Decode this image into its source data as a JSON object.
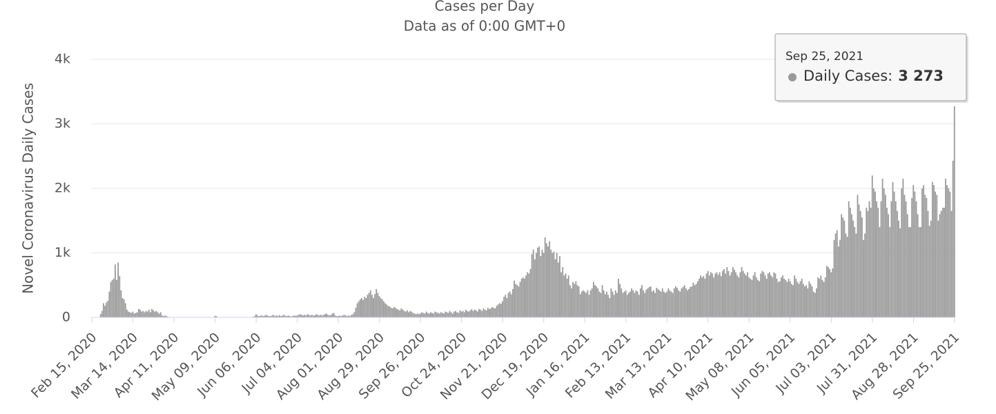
{
  "chart_data": {
    "type": "bar",
    "title": "Cases per Day",
    "subtitle": "Data as of 0:00 GMT+0",
    "y_label": "Novel Coronavirus Daily Cases",
    "categories": [
      "Feb 15, 2020",
      null,
      null,
      null,
      null,
      null,
      null,
      null,
      null,
      null,
      null,
      null,
      null,
      null,
      null,
      null,
      null,
      null,
      null,
      null,
      null,
      null,
      null,
      null,
      null,
      null,
      null,
      null,
      "Mar 14, 2020",
      null,
      null,
      null,
      null,
      null,
      null,
      null,
      null,
      null,
      null,
      null,
      null,
      null,
      null,
      null,
      null,
      null,
      null,
      null,
      null,
      null,
      null,
      null,
      null,
      null,
      null,
      null,
      "Apr 11, 2020",
      null,
      null,
      null,
      null,
      null,
      null,
      null,
      null,
      null,
      null,
      null,
      null,
      null,
      null,
      null,
      null,
      null,
      null,
      null,
      null,
      null,
      null,
      null,
      null,
      null,
      null,
      null,
      "May 09, 2020",
      null,
      null,
      null,
      null,
      null,
      null,
      null,
      null,
      null,
      null,
      null,
      null,
      null,
      null,
      null,
      null,
      null,
      null,
      null,
      null,
      null,
      null,
      null,
      null,
      null,
      null,
      null,
      "Jun 06, 2020",
      null,
      null,
      null,
      null,
      null,
      null,
      null,
      null,
      null,
      null,
      null,
      null,
      null,
      null,
      null,
      null,
      null,
      null,
      null,
      null,
      null,
      null,
      null,
      null,
      null,
      null,
      null,
      "Jul 04, 2020",
      null,
      null,
      null,
      null,
      null,
      null,
      null,
      null,
      null,
      null,
      null,
      null,
      null,
      null,
      null,
      null,
      null,
      null,
      null,
      null,
      null,
      null,
      null,
      null,
      null,
      null,
      null,
      "Aug 01, 2020",
      null,
      null,
      null,
      null,
      null,
      null,
      null,
      null,
      null,
      null,
      null,
      null,
      null,
      null,
      null,
      null,
      null,
      null,
      null,
      null,
      null,
      null,
      null,
      null,
      null,
      null,
      null,
      "Aug 29, 2020",
      null,
      null,
      null,
      null,
      null,
      null,
      null,
      null,
      null,
      null,
      null,
      null,
      null,
      null,
      null,
      null,
      null,
      null,
      null,
      null,
      null,
      null,
      null,
      null,
      null,
      null,
      null,
      "Sep 26, 2020",
      null,
      null,
      null,
      null,
      null,
      null,
      null,
      null,
      null,
      null,
      null,
      null,
      null,
      null,
      null,
      null,
      null,
      null,
      null,
      null,
      null,
      null,
      null,
      null,
      null,
      null,
      null,
      "Oct 24, 2020",
      null,
      null,
      null,
      null,
      null,
      null,
      null,
      null,
      null,
      null,
      null,
      null,
      null,
      null,
      null,
      null,
      null,
      null,
      null,
      null,
      null,
      null,
      null,
      null,
      null,
      null,
      null,
      "Nov 21, 2020",
      null,
      null,
      null,
      null,
      null,
      null,
      null,
      null,
      null,
      null,
      null,
      null,
      null,
      null,
      null,
      null,
      null,
      null,
      null,
      null,
      null,
      null,
      null,
      null,
      null,
      null,
      null,
      "Dec 19, 2020",
      null,
      null,
      null,
      null,
      null,
      null,
      null,
      null,
      null,
      null,
      null,
      null,
      null,
      null,
      null,
      null,
      null,
      null,
      null,
      null,
      null,
      null,
      null,
      null,
      null,
      null,
      null,
      "Jan 16, 2021",
      null,
      null,
      null,
      null,
      null,
      null,
      null,
      null,
      null,
      null,
      null,
      null,
      null,
      null,
      null,
      null,
      null,
      null,
      null,
      null,
      null,
      null,
      null,
      null,
      null,
      null,
      null,
      "Feb 13, 2021",
      null,
      null,
      null,
      null,
      null,
      null,
      null,
      null,
      null,
      null,
      null,
      null,
      null,
      null,
      null,
      null,
      null,
      null,
      null,
      null,
      null,
      null,
      null,
      null,
      null,
      null,
      null,
      "Mar 13, 2021",
      null,
      null,
      null,
      null,
      null,
      null,
      null,
      null,
      null,
      null,
      null,
      null,
      null,
      null,
      null,
      null,
      null,
      null,
      null,
      null,
      null,
      null,
      null,
      null,
      null,
      null,
      null,
      "Apr 10, 2021",
      null,
      null,
      null,
      null,
      null,
      null,
      null,
      null,
      null,
      null,
      null,
      null,
      null,
      null,
      null,
      null,
      null,
      null,
      null,
      null,
      null,
      null,
      null,
      null,
      null,
      null,
      null,
      "May 08, 2021",
      null,
      null,
      null,
      null,
      null,
      null,
      null,
      null,
      null,
      null,
      null,
      null,
      null,
      null,
      null,
      null,
      null,
      null,
      null,
      null,
      null,
      null,
      null,
      null,
      null,
      null,
      null,
      "Jun 05, 2021",
      null,
      null,
      null,
      null,
      null,
      null,
      null,
      null,
      null,
      null,
      null,
      null,
      null,
      null,
      null,
      null,
      null,
      null,
      null,
      null,
      null,
      null,
      null,
      null,
      null,
      null,
      null,
      "Jul 03, 2021",
      null,
      null,
      null,
      null,
      null,
      null,
      null,
      null,
      null,
      null,
      null,
      null,
      null,
      null,
      null,
      null,
      null,
      null,
      null,
      null,
      null,
      null,
      null,
      null,
      null,
      null,
      null,
      "Jul 31, 2021",
      null,
      null,
      null,
      null,
      null,
      null,
      null,
      null,
      null,
      null,
      null,
      null,
      null,
      null,
      null,
      null,
      null,
      null,
      null,
      null,
      null,
      null,
      null,
      null,
      null,
      null,
      null,
      "Aug 28, 2021",
      null,
      null,
      null,
      null,
      null,
      null,
      null,
      null,
      null,
      null,
      null,
      null,
      null,
      null,
      null,
      null,
      null,
      null,
      null,
      null,
      null,
      null,
      null,
      null,
      null,
      null,
      null,
      "Sep 25, 2021"
    ],
    "series": [
      {
        "name": "Daily Cases",
        "color": "#999999",
        "values": [
          0,
          0,
          0,
          0,
          0,
          0,
          50,
          100,
          220,
          180,
          230,
          260,
          400,
          550,
          580,
          600,
          820,
          580,
          850,
          640,
          420,
          300,
          280,
          220,
          120,
          90,
          80,
          70,
          90,
          60,
          70,
          80,
          130,
          120,
          90,
          100,
          80,
          100,
          90,
          120,
          80,
          130,
          110,
          90,
          100,
          80,
          60,
          80,
          30,
          20,
          30,
          20,
          10,
          5,
          0,
          0,
          5,
          3,
          2,
          0,
          0,
          0,
          0,
          0,
          0,
          0,
          0,
          0,
          0,
          0,
          0,
          0,
          0,
          0,
          0,
          0,
          0,
          0,
          0,
          0,
          0,
          0,
          0,
          0,
          25,
          20,
          0,
          0,
          0,
          0,
          0,
          0,
          0,
          0,
          0,
          0,
          0,
          0,
          0,
          0,
          0,
          0,
          0,
          0,
          0,
          0,
          0,
          0,
          0,
          0,
          10,
          20,
          50,
          30,
          20,
          25,
          30,
          20,
          30,
          40,
          25,
          20,
          20,
          30,
          40,
          20,
          30,
          20,
          35,
          20,
          30,
          40,
          25,
          20,
          30,
          20,
          15,
          20,
          30,
          25,
          30,
          40,
          50,
          40,
          30,
          40,
          30,
          50,
          40,
          30,
          40,
          30,
          30,
          50,
          40,
          30,
          40,
          30,
          40,
          50,
          60,
          40,
          30,
          40,
          60,
          70,
          30,
          20,
          20,
          30,
          20,
          30,
          40,
          30,
          20,
          30,
          20,
          40,
          50,
          80,
          150,
          220,
          250,
          280,
          300,
          270,
          320,
          300,
          350,
          380,
          420,
          350,
          300,
          360,
          440,
          380,
          330,
          300,
          280,
          250,
          220,
          200,
          180,
          170,
          150,
          140,
          160,
          150,
          130,
          120,
          110,
          140,
          120,
          100,
          90,
          110,
          80,
          100,
          90,
          70,
          60,
          50,
          60,
          50,
          60,
          80,
          70,
          60,
          90,
          70,
          60,
          80,
          70,
          60,
          90,
          80,
          70,
          60,
          80,
          70,
          60,
          90,
          80,
          70,
          100,
          80,
          60,
          90,
          100,
          80,
          70,
          110,
          90,
          100,
          80,
          120,
          100,
          90,
          110,
          130,
          100,
          120,
          110,
          90,
          130,
          120,
          100,
          140,
          120,
          110,
          150,
          130,
          140,
          160,
          150,
          140,
          180,
          200,
          220,
          210,
          250,
          320,
          350,
          300,
          380,
          400,
          360,
          440,
          570,
          520,
          500,
          480,
          550,
          600,
          620,
          600,
          650,
          700,
          680,
          750,
          980,
          1050,
          900,
          1000,
          1080,
          1100,
          950,
          1050,
          1000,
          1240,
          1150,
          1100,
          1180,
          1050,
          1000,
          1020,
          900,
          1000,
          850,
          950,
          700,
          780,
          650,
          680,
          600,
          650,
          500,
          450,
          550,
          520,
          560,
          500,
          480,
          360,
          400,
          420,
          400,
          380,
          420,
          350,
          420,
          450,
          550,
          500,
          480,
          450,
          400,
          380,
          500,
          420,
          360,
          400,
          350,
          300,
          450,
          400,
          350,
          420,
          380,
          600,
          520,
          450,
          380,
          400,
          420,
          350,
          380,
          400,
          450,
          420,
          380,
          420,
          400,
          350,
          450,
          500,
          420,
          380,
          430,
          450,
          470,
          480,
          400,
          420,
          380,
          460,
          440,
          420,
          400,
          450,
          400,
          380,
          400,
          450,
          420,
          400,
          380,
          450,
          480,
          460,
          420,
          400,
          450,
          470,
          500,
          450,
          420,
          440,
          470,
          480,
          540,
          500,
          520,
          560,
          600,
          650,
          620,
          640,
          600,
          680,
          720,
          650,
          700,
          680,
          620,
          680,
          700,
          660,
          700,
          640,
          720,
          750,
          680,
          780,
          720,
          650,
          700,
          780,
          740,
          700,
          650,
          620,
          700,
          780,
          720,
          680,
          650,
          700,
          620,
          600,
          580,
          650,
          700,
          620,
          580,
          560,
          680,
          720,
          700,
          650,
          600,
          680,
          700,
          650,
          620,
          700,
          680,
          600,
          550,
          560,
          620,
          650,
          600,
          580,
          550,
          600,
          560,
          520,
          500,
          650,
          600,
          550,
          520,
          560,
          600,
          520,
          480,
          500,
          450,
          560,
          520,
          480,
          400,
          380,
          450,
          620,
          600,
          650,
          580,
          550,
          620,
          800,
          780,
          750,
          700,
          760,
          1200,
          1300,
          1350,
          1100,
          1200,
          1600,
          1550,
          1500,
          1300,
          1250,
          1800,
          1700,
          1600,
          1500,
          1400,
          1300,
          1900,
          1750,
          1650,
          1550,
          1200,
          1300,
          1700,
          1650,
          1800,
          1700,
          2200,
          2000,
          1950,
          1800,
          1700,
          1400,
          1800,
          2150,
          2000,
          1900,
          1700,
          1600,
          1400,
          1800,
          2100,
          1950,
          1800,
          1650,
          1500,
          1380,
          2000,
          2150,
          1900,
          1800,
          1600,
          1400,
          1400,
          1850,
          2050,
          1950,
          1800,
          1600,
          1400,
          1400,
          2000,
          2050,
          1900,
          1850,
          1650,
          1420,
          1500,
          2100,
          2050,
          1950,
          1900,
          1500,
          1600,
          1650,
          1700,
          1700,
          2150,
          2050,
          2000,
          1950,
          1650,
          2430,
          3273
        ]
      }
    ],
    "ylim": [
      0,
      4000
    ],
    "yticks": [
      0,
      {
        "value": 1000,
        "label": "1k"
      },
      {
        "value": 2000,
        "label": "2k"
      },
      {
        "value": 3000,
        "label": "3k"
      },
      {
        "value": 4000,
        "label": "4k"
      }
    ],
    "grid": true,
    "tooltip": {
      "title": "Sep 25, 2021",
      "label": "Daily Cases:",
      "value": "3 273"
    }
  }
}
